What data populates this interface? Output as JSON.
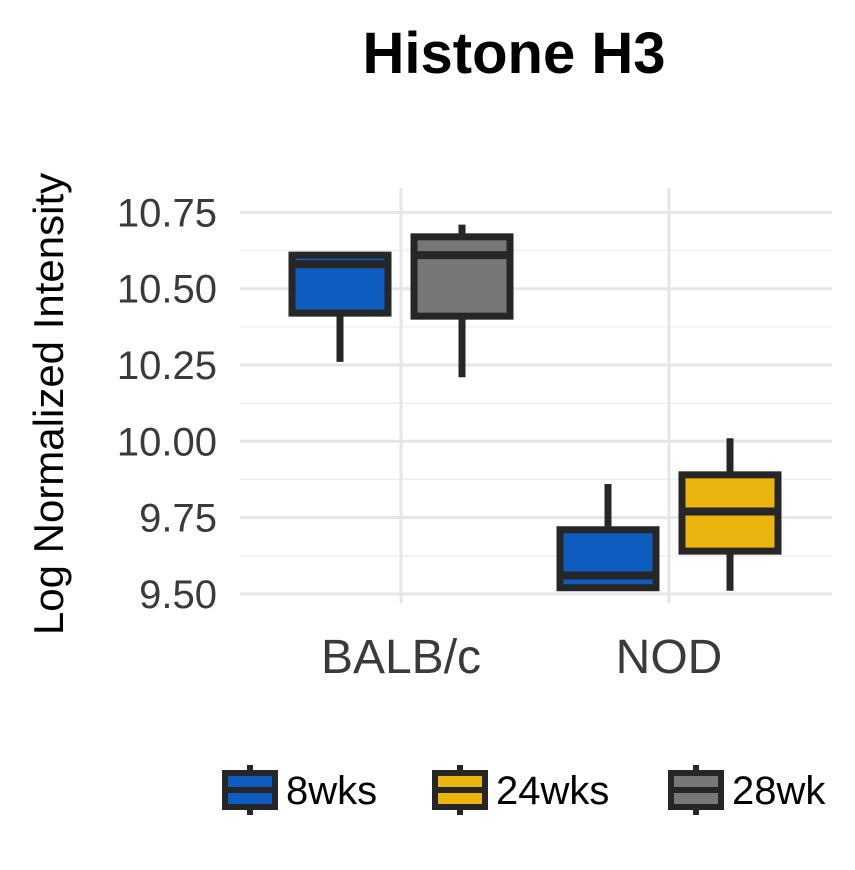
{
  "chart_data": {
    "type": "box",
    "title": "Histone H3",
    "xlabel": "",
    "ylabel": "Log Normalized Intensity",
    "ylim": [
      9.47,
      10.83
    ],
    "yticks": [
      "9.50",
      "9.75",
      "10.00",
      "10.25",
      "10.50",
      "10.75"
    ],
    "categories": [
      "BALB/c",
      "NOD"
    ],
    "grid": true,
    "legend_position": "bottom",
    "legend": [
      {
        "name": "8wks",
        "color": "#0e5cbf"
      },
      {
        "name": "24wks",
        "color": "#ebb40e"
      },
      {
        "name": "28wk",
        "color": "#777777"
      }
    ],
    "boxes": [
      {
        "category": "BALB/c",
        "series": "8wks",
        "min": 10.26,
        "q1": 10.42,
        "median": 10.58,
        "q3": 10.61,
        "max": 10.61
      },
      {
        "category": "BALB/c",
        "series": "28wk",
        "min": 10.21,
        "q1": 10.41,
        "median": 10.61,
        "q3": 10.67,
        "max": 10.71
      },
      {
        "category": "NOD",
        "series": "8wks",
        "min": 9.51,
        "q1": 9.52,
        "median": 9.56,
        "q3": 9.71,
        "max": 9.86
      },
      {
        "category": "NOD",
        "series": "24wks",
        "min": 9.51,
        "q1": 9.64,
        "median": 9.77,
        "q3": 9.89,
        "max": 10.01
      }
    ]
  }
}
